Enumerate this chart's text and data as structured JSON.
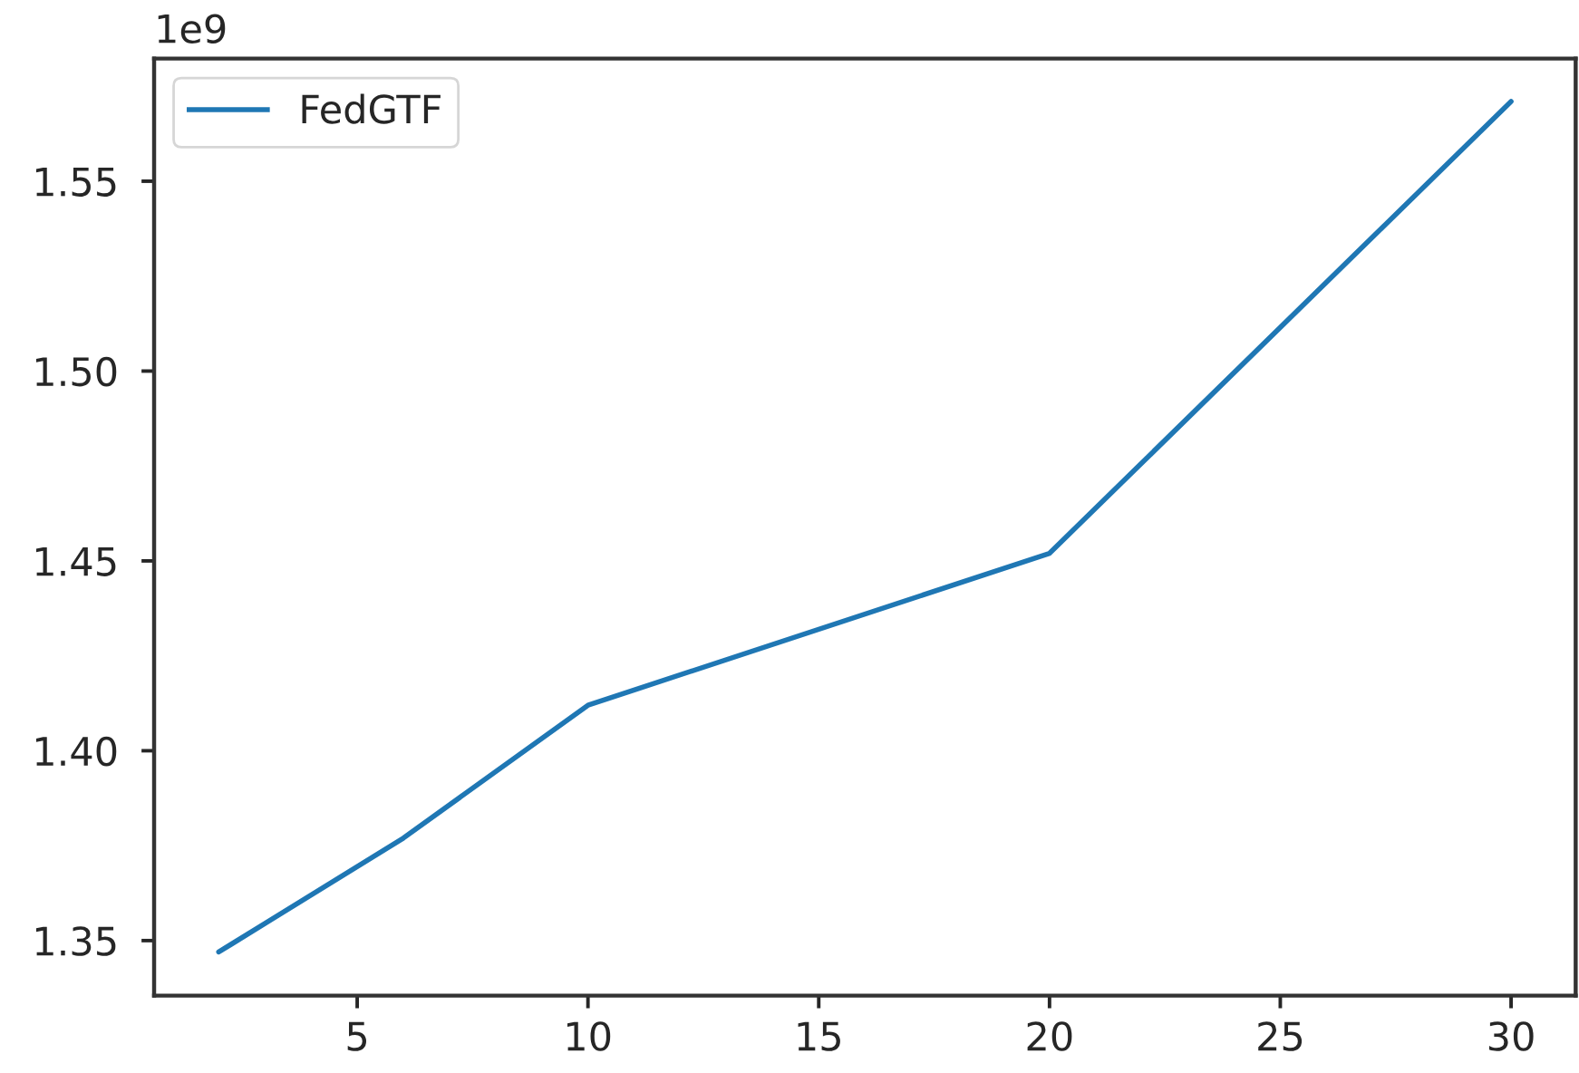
{
  "chart_data": {
    "type": "line",
    "x": [
      2,
      6,
      10,
      20,
      30
    ],
    "series": [
      {
        "name": "FedGTF",
        "color": "#1f77b4",
        "values": [
          1.347,
          1.377,
          1.412,
          1.452,
          1.571
        ]
      }
    ],
    "xlim": [
      0.6,
      31.4
    ],
    "xticks": [
      5,
      10,
      15,
      20,
      25,
      30
    ],
    "ylim": [
      1.3355,
      1.5823
    ],
    "yticks": [
      1.35,
      {
        "value": 1.4,
        "label": "1.40"
      },
      1.45,
      {
        "value": 1.5,
        "label": "1.50"
      },
      1.55
    ],
    "annotations": [
      "1e9"
    ],
    "legend": "top left",
    "marker": "none",
    "line_style": "solid"
  }
}
